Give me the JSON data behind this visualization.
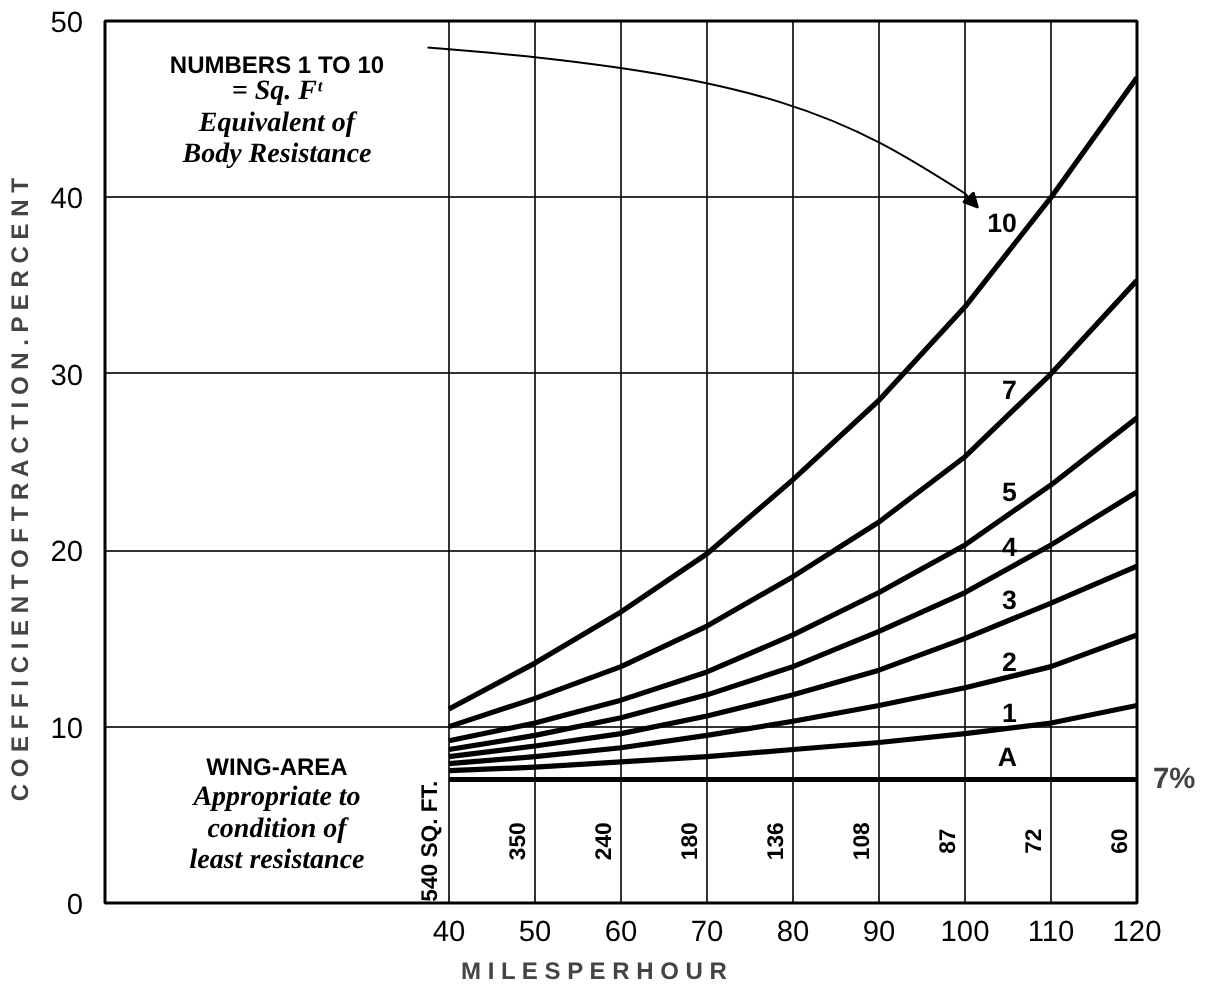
{
  "chart_data": {
    "type": "line",
    "xlabel": "M I L E S     P E R     H O U R",
    "ylabel": "C O E F F I C I E N T   O F   T R A C T I O N .   P E R   C E N T",
    "x": [
      40,
      50,
      60,
      70,
      80,
      90,
      100,
      110,
      120
    ],
    "xlim": [
      0,
      120
    ],
    "ylim": [
      0,
      50
    ],
    "xticks": [
      40,
      50,
      60,
      70,
      80,
      90,
      100,
      110,
      120
    ],
    "yticks": [
      0,
      10,
      20,
      30,
      40,
      50
    ],
    "grid": true,
    "marker": "none",
    "line_style": "solid",
    "series": [
      {
        "name": "10",
        "color": "#000000",
        "values": [
          11,
          13.6,
          16.5,
          19.8,
          24,
          28.5,
          33.8,
          40,
          46.8
        ]
      },
      {
        "name": "7",
        "color": "#000000",
        "values": [
          10,
          11.6,
          13.4,
          15.7,
          18.5,
          21.6,
          25.3,
          30,
          35.3
        ]
      },
      {
        "name": "5",
        "color": "#000000",
        "values": [
          9.2,
          10.2,
          11.5,
          13.1,
          15.2,
          17.6,
          20.3,
          23.7,
          27.5
        ]
      },
      {
        "name": "4",
        "color": "#000000",
        "values": [
          8.7,
          9.5,
          10.5,
          11.8,
          13.4,
          15.4,
          17.6,
          20.3,
          23.3
        ]
      },
      {
        "name": "3",
        "color": "#000000",
        "values": [
          8.3,
          8.9,
          9.6,
          10.6,
          11.8,
          13.2,
          15,
          17,
          19.1
        ]
      },
      {
        "name": "2",
        "color": "#000000",
        "values": [
          7.9,
          8.3,
          8.8,
          9.5,
          10.3,
          11.2,
          12.2,
          13.4,
          15.2
        ]
      },
      {
        "name": "1",
        "color": "#000000",
        "values": [
          7.5,
          7.7,
          8,
          8.3,
          8.7,
          9.1,
          9.6,
          10.2,
          11.2
        ]
      },
      {
        "name": "A",
        "color": "#000000",
        "values": [
          7,
          7,
          7,
          7,
          7,
          7,
          7,
          7,
          7
        ]
      }
    ],
    "annotations": [
      "NUMBERS 1 TO 10",
      "= Sq. Fᵗ Equivalent of Body Resistance",
      "WING-AREA",
      "Appropriate to condition of least resistance",
      "540 SQ. FT.",
      "350",
      "240",
      "180",
      "136",
      "108",
      "87",
      "72",
      "60",
      {
        "text": "7%",
        "x": 120,
        "y": 7
      }
    ]
  }
}
